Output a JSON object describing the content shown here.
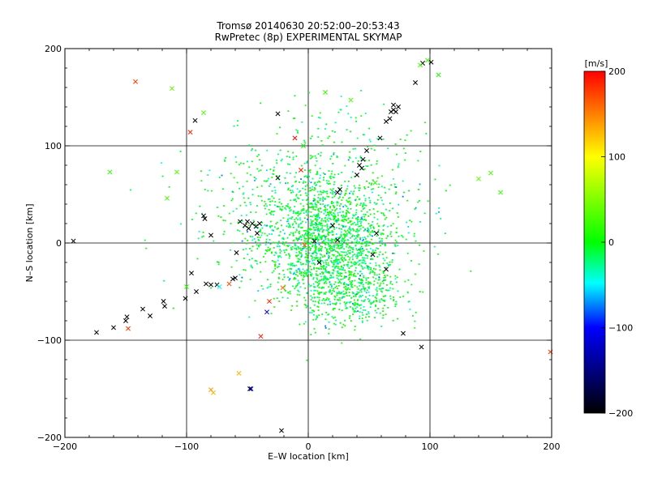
{
  "chart_data": {
    "type": "scatter",
    "title": "Tromsø 20140630 20:52:00–20:53:43",
    "subtitle": "RwPretec (8p) EXPERIMENTAL SKYMAP",
    "xlabel": "E–W location [km]",
    "ylabel": "N–S location [km]",
    "xlim": [
      -200,
      200
    ],
    "ylim": [
      -200,
      200
    ],
    "x_ticks": [
      "−200",
      "−100",
      "0",
      "100",
      "200"
    ],
    "y_ticks": [
      "200",
      "100",
      "0",
      "−100",
      "−200"
    ],
    "grid": true,
    "colorbar": {
      "label": "[m/s]",
      "range": [
        -200,
        200
      ],
      "ticks": [
        "200",
        "100",
        "0",
        "−100",
        "−200"
      ],
      "colors": [
        "#ff0000",
        "#ffff00",
        "#00ff00",
        "#0000ff",
        "#000000"
      ]
    },
    "crosses": [
      [
        -193,
        2,
        -200
      ],
      [
        -174,
        -92,
        -200
      ],
      [
        -160,
        -87,
        -200
      ],
      [
        -150,
        -80,
        -200
      ],
      [
        -149,
        -76,
        -200
      ],
      [
        -136,
        -68,
        -200
      ],
      [
        -130,
        -75,
        -200
      ],
      [
        -119,
        -60,
        -200
      ],
      [
        -118,
        -65,
        -200
      ],
      [
        -101,
        -57,
        -200
      ],
      [
        -96,
        -31,
        -200
      ],
      [
        -92,
        -50,
        -200
      ],
      [
        -86,
        28,
        -200
      ],
      [
        -85,
        25,
        -200
      ],
      [
        -84,
        -42,
        -200
      ],
      [
        -80,
        8,
        -200
      ],
      [
        -80,
        -43,
        -200
      ],
      [
        -75,
        -43,
        -200
      ],
      [
        -62,
        -37,
        -200
      ],
      [
        -60,
        -36,
        -200
      ],
      [
        -59,
        -10,
        -200
      ],
      [
        -56,
        22,
        -200
      ],
      [
        -52,
        18,
        -200
      ],
      [
        -50,
        22,
        -200
      ],
      [
        -49,
        15,
        -200
      ],
      [
        -46,
        20,
        -200
      ],
      [
        -43,
        17,
        -200
      ],
      [
        -40,
        20,
        -200
      ],
      [
        -42,
        10,
        -200
      ],
      [
        -93,
        126,
        -200
      ],
      [
        -25,
        133,
        -200
      ],
      [
        -25,
        67,
        -200
      ],
      [
        -22,
        -193,
        -200
      ],
      [
        -48,
        -150,
        -200
      ],
      [
        5,
        2,
        -200
      ],
      [
        9,
        -20,
        -200
      ],
      [
        24,
        52,
        -200
      ],
      [
        26,
        55,
        -200
      ],
      [
        40,
        70,
        -200
      ],
      [
        42,
        80,
        -200
      ],
      [
        45,
        86,
        -200
      ],
      [
        44,
        77,
        -200
      ],
      [
        48,
        95,
        -200
      ],
      [
        53,
        -12,
        -200
      ],
      [
        59,
        108,
        -200
      ],
      [
        64,
        125,
        -200
      ],
      [
        67,
        128,
        -200
      ],
      [
        68,
        135,
        -200
      ],
      [
        70,
        142,
        -200
      ],
      [
        70,
        137,
        -200
      ],
      [
        72,
        135,
        -200
      ],
      [
        74,
        140,
        -200
      ],
      [
        88,
        165,
        -200
      ],
      [
        94,
        185,
        -200
      ],
      [
        101,
        186,
        -200
      ],
      [
        56,
        10,
        -200
      ],
      [
        64,
        -27,
        -200
      ],
      [
        78,
        -93,
        -200
      ],
      [
        93,
        -107,
        -200
      ],
      [
        20,
        18,
        -200
      ],
      [
        24,
        3,
        -200
      ],
      [
        -142,
        166,
        180
      ],
      [
        -97,
        114,
        190
      ],
      [
        -11,
        108,
        200
      ],
      [
        -6,
        75,
        190
      ],
      [
        -21,
        -46,
        160
      ],
      [
        -32,
        -60,
        180
      ],
      [
        -39,
        -96,
        190
      ],
      [
        -65,
        -42,
        170
      ],
      [
        -148,
        -88,
        180
      ],
      [
        199,
        -112,
        180
      ],
      [
        -3,
        -2,
        170
      ],
      [
        -163,
        73,
        20
      ],
      [
        -108,
        73,
        30
      ],
      [
        -116,
        46,
        30
      ],
      [
        -112,
        159,
        40
      ],
      [
        -86,
        134,
        30
      ],
      [
        150,
        72,
        30
      ],
      [
        158,
        52,
        20
      ],
      [
        140,
        66,
        40
      ],
      [
        107,
        173,
        10
      ],
      [
        98,
        188,
        20
      ],
      [
        92,
        183,
        30
      ],
      [
        -100,
        -45,
        20
      ],
      [
        55,
        62,
        10
      ],
      [
        14,
        155,
        20
      ],
      [
        35,
        147,
        30
      ],
      [
        -4,
        100,
        0
      ],
      [
        -73,
        -45,
        -50
      ],
      [
        -34,
        -71,
        -120
      ],
      [
        -47,
        -150,
        -120
      ],
      [
        -57,
        -134,
        130
      ],
      [
        -78,
        -154,
        130
      ],
      [
        -80,
        -151,
        140
      ]
    ]
  }
}
